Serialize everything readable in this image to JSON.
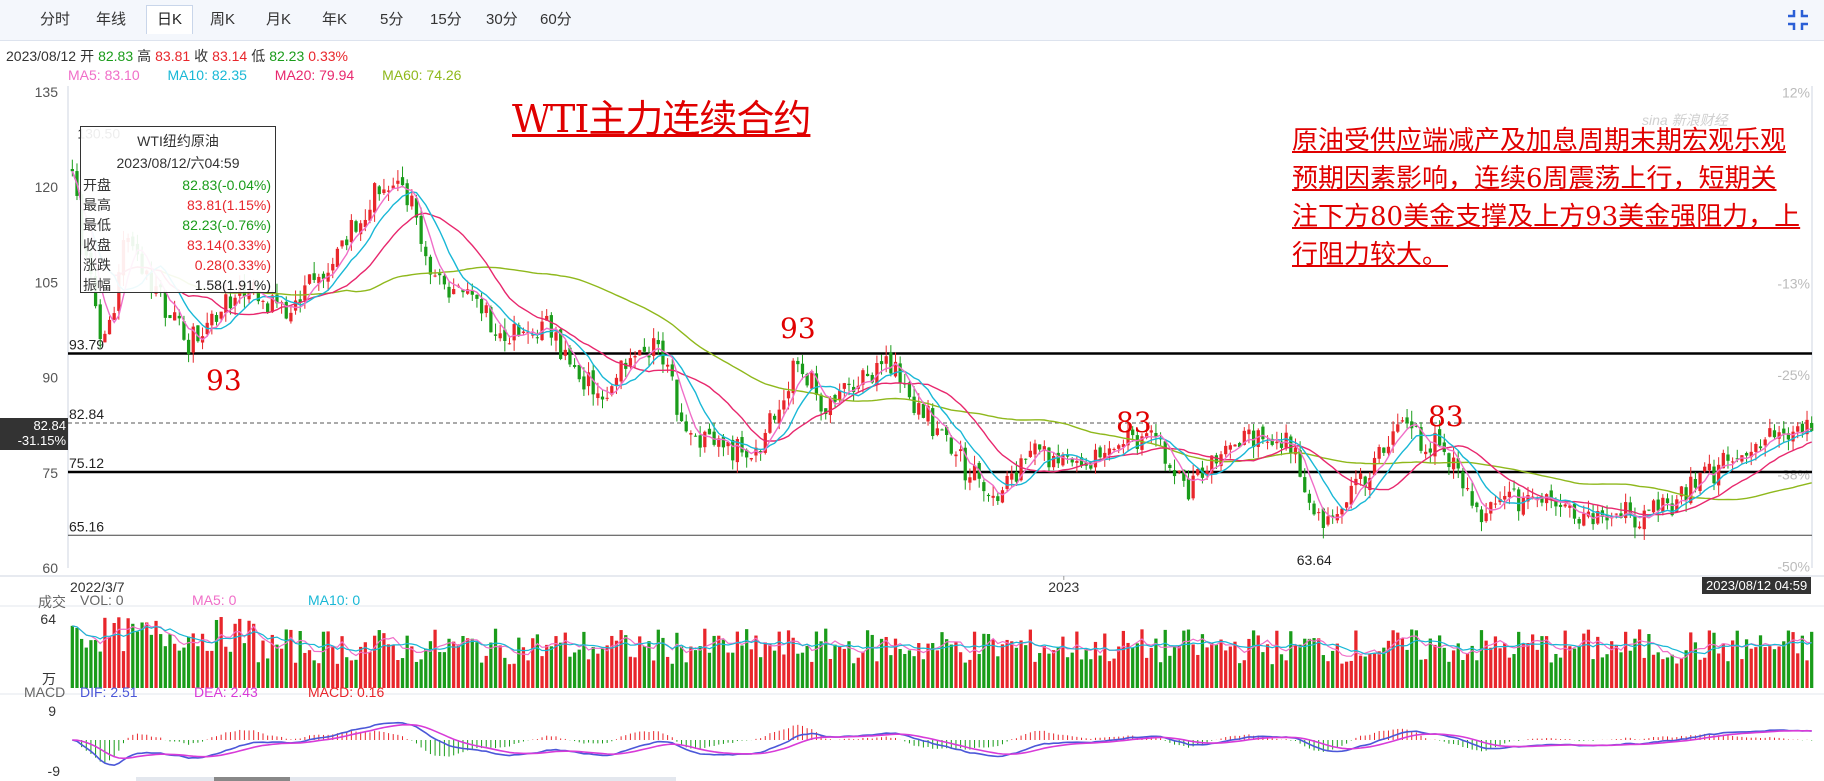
{
  "toolbar": {
    "tabs": [
      "分时",
      "年线",
      "日K",
      "周K",
      "月K",
      "年K",
      "5分",
      "15分",
      "30分",
      "60分"
    ],
    "active_index": 2
  },
  "info": {
    "date": "2023/08/12",
    "open_label": "开",
    "open": "82.83",
    "high_label": "高",
    "high": "83.81",
    "close_label": "收",
    "close": "83.14",
    "low_label": "低",
    "low": "82.23",
    "change_pct": "0.33%"
  },
  "ma": {
    "ma5": "MA5: 83.10",
    "ma10": "MA10: 82.35",
    "ma20": "MA20: 79.94",
    "ma60": "MA60: 74.26"
  },
  "ohlc_box": {
    "title": "WTI纽约原油",
    "datetime": "2023/08/12/六04:59",
    "rows": [
      {
        "label": "开盘",
        "value": "82.83(-0.04%)",
        "color": "green"
      },
      {
        "label": "最高",
        "value": "83.81(1.15%)",
        "color": "red"
      },
      {
        "label": "最低",
        "value": "82.23(-0.76%)",
        "color": "green"
      },
      {
        "label": "收盘",
        "value": "83.14(0.33%)",
        "color": "red"
      },
      {
        "label": "涨跌",
        "value": "0.28(0.33%)",
        "color": "red"
      },
      {
        "label": "振幅",
        "value": "1.58(1.91%)",
        "color": "black"
      }
    ]
  },
  "title": "WTI主力连续合约",
  "annotation": "原油受供应端减产及加息周期末期宏观乐观预期因素影响，连续6周震荡上行，短期关注下方80美金支撑及上方93美金强阻力，上行阻力较大。",
  "labels": {
    "l93_left": "93",
    "l93_mid": "93",
    "l83_a": "83",
    "l83_b": "83"
  },
  "price_tag": {
    "price": "82.84",
    "pct": "-31.15%"
  },
  "time_tag": "2023/08/12 04:59",
  "volume": {
    "label": "成交",
    "vol": "VOL: 0",
    "ma5": "MA5: 0",
    "ma10": "MA10: 0",
    "top": "64",
    "unit": "万"
  },
  "macd": {
    "label": "MACD",
    "dif": "DIF: 2.51",
    "dea": "DEA: 2.43",
    "macd": "MACD: 0.16",
    "top": "9",
    "bottom": "-9"
  },
  "logo": "sina 新浪财经",
  "colors": {
    "up": "#e8262b",
    "down": "#1a9c1a",
    "ma5": "#f06ec8",
    "ma10": "#19b8d6",
    "ma20": "#e8286e",
    "ma60": "#8fb81c",
    "dif": "#4b57d8",
    "dea": "#d83bd8"
  },
  "chart_data": {
    "type": "candlestick",
    "title": "WTI主力连续合约",
    "x_start": "2022/3/7",
    "x_end": "2023/08/12",
    "x_tick_labels": [
      "2022/3/7",
      "2023"
    ],
    "y_tick_labels": [
      "135",
      "120",
      "105",
      "90",
      "75",
      "60"
    ],
    "ylim": [
      60,
      135
    ],
    "right_tick_labels": [
      "12%",
      "-13%",
      "-25%",
      "-38%",
      "-50%"
    ],
    "horizontal_levels": [
      {
        "value": 93.79,
        "label": "93.79"
      },
      {
        "value": 82.84,
        "label": "82.84"
      },
      {
        "value": 75.12,
        "label": "75.12"
      },
      {
        "value": 65.16,
        "label": "65.16"
      }
    ],
    "annotated_points": [
      {
        "label": "130.50",
        "value": 130.5,
        "date": "2022/3/8"
      },
      {
        "label": "63.64",
        "value": 63.64,
        "date": "2023/3/17"
      }
    ],
    "price_path": [
      [
        "2022-03-07",
        123
      ],
      [
        "2022-03-09",
        112
      ],
      [
        "2022-03-16",
        96
      ],
      [
        "2022-03-23",
        112
      ],
      [
        "2022-04-11",
        95
      ],
      [
        "2022-04-28",
        105
      ],
      [
        "2022-05-10",
        100
      ],
      [
        "2022-05-31",
        114
      ],
      [
        "2022-06-08",
        120
      ],
      [
        "2022-06-14",
        121
      ],
      [
        "2022-06-22",
        105
      ],
      [
        "2022-07-05",
        103
      ],
      [
        "2022-07-14",
        96
      ],
      [
        "2022-07-29",
        98
      ],
      [
        "2022-08-05",
        89
      ],
      [
        "2022-08-15",
        89
      ],
      [
        "2022-08-29",
        97
      ],
      [
        "2022-09-07",
        82
      ],
      [
        "2022-09-26",
        77
      ],
      [
        "2022-10-10",
        92
      ],
      [
        "2022-10-19",
        85
      ],
      [
        "2022-11-07",
        92
      ],
      [
        "2022-11-22",
        81
      ],
      [
        "2022-12-09",
        71
      ],
      [
        "2022-12-20",
        79
      ],
      [
        "2023-01-03",
        76
      ],
      [
        "2023-01-23",
        82
      ],
      [
        "2023-02-06",
        73
      ],
      [
        "2023-02-16",
        79
      ],
      [
        "2023-03-07",
        80
      ],
      [
        "2023-03-17",
        66
      ],
      [
        "2023-03-28",
        73
      ],
      [
        "2023-04-12",
        83
      ],
      [
        "2023-04-28",
        75
      ],
      [
        "2023-05-04",
        69
      ],
      [
        "2023-05-19",
        72
      ],
      [
        "2023-06-12",
        68
      ],
      [
        "2023-06-26",
        69
      ],
      [
        "2023-07-14",
        76
      ],
      [
        "2023-07-31",
        81
      ],
      [
        "2023-08-12",
        83.14
      ]
    ]
  }
}
